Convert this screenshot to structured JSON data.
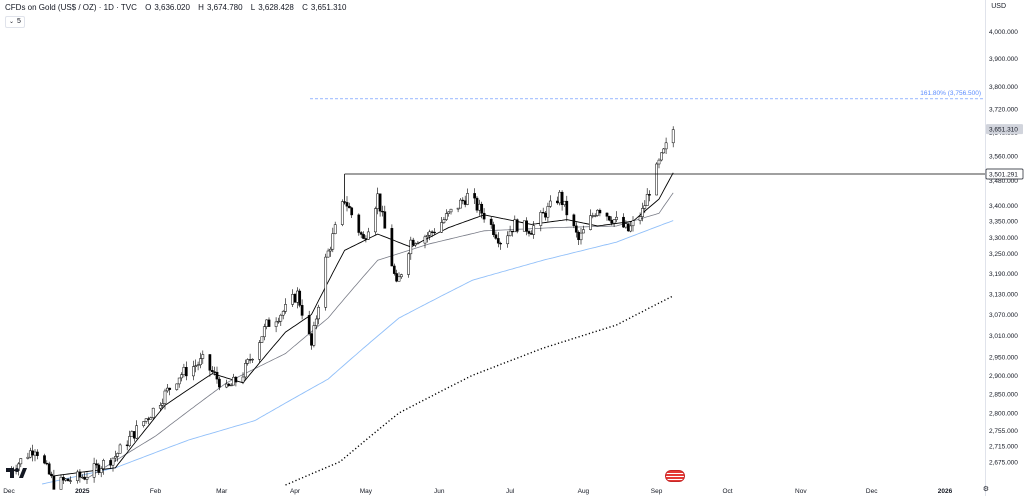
{
  "header": {
    "symbol": "CFDs on Gold (US$ / OZ) · 1D · TVC",
    "open": "3,636.020",
    "high": "3,674.780",
    "low": "3,628.428",
    "close": "3,651.310",
    "o_label": "O",
    "h_label": "H",
    "l_label": "L",
    "c_label": "C",
    "indicator_chevron": "⌄",
    "indicator_label": "5"
  },
  "currency": "USD",
  "settings_icon": "gear-icon",
  "colors": {
    "up": "#ffffff",
    "down": "#000000",
    "wick": "#000000",
    "ma_fast": "#000000",
    "ma_mid": "#787b86",
    "ma_blue": "#90bff9",
    "ma_dotted": "#000000",
    "fib": "#5b8cff",
    "resistance": "#000000",
    "grid": "#f0f3fa",
    "axis_text": "#131722"
  },
  "chart_data": {
    "type": "candlestick",
    "title": "CFDs on Gold (US$ / OZ) · 1D · TVC",
    "y_axis": {
      "ticks": [
        2675,
        2715,
        2755,
        2800,
        2850,
        2900,
        2950,
        3010,
        3070,
        3130,
        3190,
        3250,
        3300,
        3350,
        3400,
        3480,
        3560,
        3640,
        3720,
        3800,
        3900,
        4000
      ],
      "tick_labels": [
        "2,675.000",
        "2,715.000",
        "2,755.000",
        "2,800.000",
        "2,850.000",
        "2,900.000",
        "2,950.000",
        "3,010.000",
        "3,070.000",
        "3,130.000",
        "3,190.000",
        "3,250.000",
        "3,300.000",
        "3,350.000",
        "3,400.000",
        "3,480.000",
        "3,560.000",
        "3,640.000",
        "3,720.000",
        "3,800.000",
        "3,900.000",
        "4,000.000"
      ],
      "scale": "log",
      "range": [
        2620,
        4120
      ]
    },
    "x_axis": {
      "labels": [
        "Dec",
        "2025",
        "Feb",
        "Mar",
        "Apr",
        "May",
        "Jun",
        "Jul",
        "Aug",
        "Sep",
        "Oct",
        "Nov",
        "Dec",
        "2026"
      ],
      "dates": [
        "2024-12-01",
        "2025-01-01",
        "2025-02-01",
        "2025-03-01",
        "2025-04-01",
        "2025-05-01",
        "2025-06-01",
        "2025-07-01",
        "2025-08-01",
        "2025-09-01",
        "2025-10-01",
        "2025-11-01",
        "2025-12-01",
        "2026-01-01"
      ],
      "bold_labels": [
        "2025",
        "2026"
      ]
    },
    "price_labels": [
      {
        "label": "3,651.310",
        "value": 3651.31,
        "style": "last"
      },
      {
        "label": "3,501.291",
        "value": 3501.291,
        "style": "level"
      }
    ],
    "fib": {
      "label": "161.80% (3,756.500)",
      "value": 3756.5
    },
    "resistance": {
      "value": 3501.291,
      "start_date": "2025-04-22"
    },
    "control_points": {
      "close": [
        [
          "2024-12-01",
          2650
        ],
        [
          "2024-12-12",
          2712
        ],
        [
          "2024-12-20",
          2620
        ],
        [
          "2025-01-02",
          2640
        ],
        [
          "2025-01-15",
          2690
        ],
        [
          "2025-01-30",
          2800
        ],
        [
          "2025-02-11",
          2900
        ],
        [
          "2025-02-21",
          2940
        ],
        [
          "2025-03-03",
          2860
        ],
        [
          "2025-03-10",
          2905
        ],
        [
          "2025-03-20",
          3040
        ],
        [
          "2025-03-28",
          3085
        ],
        [
          "2025-04-02",
          3130
        ],
        [
          "2025-04-08",
          2980
        ],
        [
          "2025-04-14",
          3230
        ],
        [
          "2025-04-22",
          3420
        ],
        [
          "2025-04-30",
          3290
        ],
        [
          "2025-05-06",
          3430
        ],
        [
          "2025-05-14",
          3150
        ],
        [
          "2025-05-20",
          3290
        ],
        [
          "2025-05-28",
          3310
        ],
        [
          "2025-06-05",
          3370
        ],
        [
          "2025-06-13",
          3430
        ],
        [
          "2025-06-20",
          3370
        ],
        [
          "2025-06-27",
          3290
        ],
        [
          "2025-07-03",
          3340
        ],
        [
          "2025-07-10",
          3325
        ],
        [
          "2025-07-22",
          3430
        ],
        [
          "2025-07-30",
          3290
        ],
        [
          "2025-08-07",
          3395
        ],
        [
          "2025-08-20",
          3320
        ],
        [
          "2025-08-26",
          3380
        ],
        [
          "2025-08-29",
          3450
        ],
        [
          "2025-09-02",
          3535
        ],
        [
          "2025-09-05",
          3590
        ],
        [
          "2025-09-08",
          3651
        ]
      ],
      "ma_fast": [
        [
          "2024-12-20",
          2640
        ],
        [
          "2025-01-15",
          2660
        ],
        [
          "2025-02-05",
          2820
        ],
        [
          "2025-02-25",
          2905
        ],
        [
          "2025-03-10",
          2880
        ],
        [
          "2025-03-28",
          3020
        ],
        [
          "2025-04-08",
          3070
        ],
        [
          "2025-04-22",
          3260
        ],
        [
          "2025-05-06",
          3310
        ],
        [
          "2025-05-20",
          3270
        ],
        [
          "2025-06-05",
          3330
        ],
        [
          "2025-06-20",
          3370
        ],
        [
          "2025-07-10",
          3340
        ],
        [
          "2025-07-25",
          3355
        ],
        [
          "2025-08-07",
          3335
        ],
        [
          "2025-08-22",
          3350
        ],
        [
          "2025-09-02",
          3420
        ],
        [
          "2025-09-08",
          3505
        ]
      ],
      "ma_mid": [
        [
          "2025-01-02",
          2630
        ],
        [
          "2025-02-01",
          2740
        ],
        [
          "2025-03-03",
          2880
        ],
        [
          "2025-03-28",
          2960
        ],
        [
          "2025-04-15",
          3060
        ],
        [
          "2025-05-06",
          3230
        ],
        [
          "2025-05-28",
          3280
        ],
        [
          "2025-06-20",
          3320
        ],
        [
          "2025-07-20",
          3330
        ],
        [
          "2025-08-15",
          3335
        ],
        [
          "2025-09-02",
          3375
        ],
        [
          "2025-09-08",
          3440
        ]
      ],
      "ma_blue": [
        [
          "2024-12-15",
          2620
        ],
        [
          "2025-01-15",
          2660
        ],
        [
          "2025-02-15",
          2730
        ],
        [
          "2025-03-15",
          2780
        ],
        [
          "2025-04-15",
          2890
        ],
        [
          "2025-05-15",
          3060
        ],
        [
          "2025-06-15",
          3170
        ],
        [
          "2025-07-15",
          3230
        ],
        [
          "2025-08-15",
          3285
        ],
        [
          "2025-09-08",
          3352
        ]
      ],
      "ma_dotted": [
        [
          "2025-03-25",
          2610
        ],
        [
          "2025-04-20",
          2675
        ],
        [
          "2025-05-15",
          2800
        ],
        [
          "2025-06-15",
          2900
        ],
        [
          "2025-07-15",
          2975
        ],
        [
          "2025-08-15",
          3040
        ],
        [
          "2025-09-08",
          3124
        ]
      ]
    },
    "legend": "none",
    "grid": false
  }
}
